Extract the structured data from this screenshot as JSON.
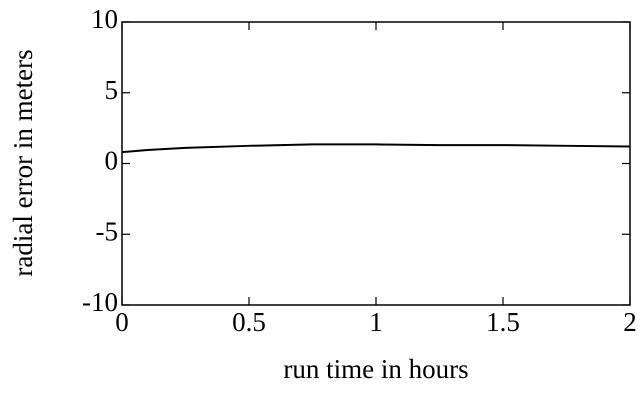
{
  "chart_data": {
    "type": "line",
    "xlabel": "run time in hours",
    "ylabel": "radial error in meters",
    "x": [
      0,
      0.1,
      0.25,
      0.5,
      0.75,
      1,
      1.25,
      1.5,
      1.75,
      2
    ],
    "series": [
      {
        "color": "#000000",
        "values": [
          0.8,
          0.95,
          1.1,
          1.25,
          1.35,
          1.35,
          1.3,
          1.3,
          1.25,
          1.2
        ]
      }
    ],
    "xlim": [
      0,
      2
    ],
    "xticks": [
      0,
      0.5,
      1,
      1.5,
      2
    ],
    "ylim": [
      -10,
      10
    ],
    "yticks": [
      10,
      5,
      0,
      -5,
      -10
    ],
    "grid": false
  }
}
